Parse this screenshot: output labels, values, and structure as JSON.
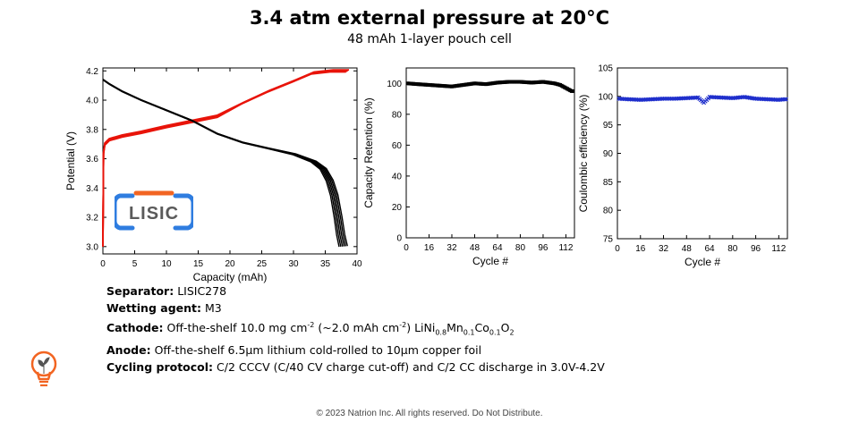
{
  "title": "3.4 atm external pressure at 20°C",
  "subtitle": "48 mAh 1-layer pouch cell",
  "logo_text": "LISIC",
  "colors": {
    "charge": "#e8140a",
    "discharge": "#000000",
    "retention": "#000000",
    "ce": "#1f2fcc",
    "logo_blue": "#2f7de0",
    "logo_orange": "#f26522"
  },
  "chart_data": [
    {
      "type": "line",
      "title": "",
      "xlabel": "Capacity (mAh)",
      "ylabel": "Potential (V)",
      "xlim": [
        0,
        40
      ],
      "ylim": [
        2.95,
        4.22
      ],
      "xticks": [
        0,
        5,
        10,
        15,
        20,
        25,
        30,
        35,
        40
      ],
      "yticks": [
        3.0,
        3.2,
        3.4,
        3.6,
        3.8,
        4.0,
        4.2
      ],
      "series": [
        {
          "name": "Charge",
          "color": "#e8140a",
          "x": [
            0,
            0.1,
            0.3,
            1,
            3,
            6,
            10,
            14,
            18,
            22,
            26,
            30,
            33,
            36,
            38.5
          ],
          "y": [
            3.0,
            3.64,
            3.7,
            3.73,
            3.755,
            3.78,
            3.82,
            3.855,
            3.89,
            3.98,
            4.06,
            4.13,
            4.185,
            4.2,
            4.2
          ]
        },
        {
          "name": "Discharge",
          "color": "#000000",
          "x": [
            0,
            1,
            3,
            6,
            10,
            14,
            18,
            22,
            26,
            30,
            33,
            34.5,
            35.5,
            36.2,
            36.8,
            37.2,
            37.6
          ],
          "y": [
            4.14,
            4.11,
            4.06,
            4.0,
            3.93,
            3.86,
            3.77,
            3.71,
            3.67,
            3.63,
            3.58,
            3.53,
            3.45,
            3.35,
            3.2,
            3.08,
            3.0
          ]
        }
      ]
    },
    {
      "type": "scatter",
      "title": "",
      "xlabel": "Cycle #",
      "ylabel": "Capacity Retention (%)",
      "xlim": [
        0,
        118
      ],
      "ylim": [
        0,
        110
      ],
      "xticks": [
        0,
        16,
        32,
        48,
        64,
        80,
        96,
        112
      ],
      "yticks": [
        0,
        20,
        40,
        60,
        80,
        100
      ],
      "series": [
        {
          "name": "Capacity Retention",
          "x": [
            1,
            8,
            16,
            24,
            32,
            40,
            48,
            56,
            64,
            72,
            80,
            88,
            96,
            104,
            108,
            112,
            116
          ],
          "y": [
            100,
            99.5,
            99,
            98.5,
            98,
            99,
            100,
            99.5,
            100.5,
            101,
            101,
            100.5,
            101,
            100,
            99,
            97,
            95
          ]
        }
      ]
    },
    {
      "type": "scatter",
      "title": "",
      "xlabel": "Cycle #",
      "ylabel": "Coulombic efficiency (%)",
      "xlim": [
        0,
        118
      ],
      "ylim": [
        75,
        105
      ],
      "xticks": [
        0,
        16,
        32,
        48,
        64,
        80,
        96,
        112
      ],
      "yticks": [
        75,
        80,
        85,
        90,
        95,
        100,
        105
      ],
      "series": [
        {
          "name": "Coulombic efficiency",
          "x": [
            1,
            8,
            16,
            24,
            32,
            40,
            48,
            56,
            60,
            64,
            72,
            80,
            88,
            96,
            104,
            112,
            116
          ],
          "y": [
            99.6,
            99.5,
            99.4,
            99.5,
            99.6,
            99.6,
            99.7,
            99.8,
            98.9,
            99.9,
            99.8,
            99.7,
            99.9,
            99.6,
            99.5,
            99.4,
            99.5
          ]
        }
      ]
    }
  ],
  "specs": {
    "separator_label": "Separator:",
    "separator_value": "LISIC278",
    "wetting_label": "Wetting agent:",
    "wetting_value": "M3",
    "cathode_label": "Cathode:",
    "cathode_p1": "Off-the-shelf 10.0 mg cm",
    "cathode_s1": "-2",
    "cathode_p2": " (~2.0 mAh cm",
    "cathode_s2": "-2",
    "cathode_p3": ") LiNi",
    "cathode_ni": "0.8",
    "cathode_mn": "Mn",
    "cathode_mn_sub": "0.1",
    "cathode_co": "Co",
    "cathode_co_sub": "0.1",
    "cathode_o": "O",
    "cathode_o_sub": "2",
    "anode_label": "Anode:",
    "anode_value": "Off-the-shelf 6.5µm lithium cold-rolled to 10µm copper foil",
    "cycling_label": "Cycling protocol:",
    "cycling_value": "C/2 CCCV (C/40 CV charge cut-off) and C/2 CC discharge in 3.0V-4.2V"
  },
  "footer": "© 2023 Natrion Inc. All rights reserved. Do Not Distribute."
}
